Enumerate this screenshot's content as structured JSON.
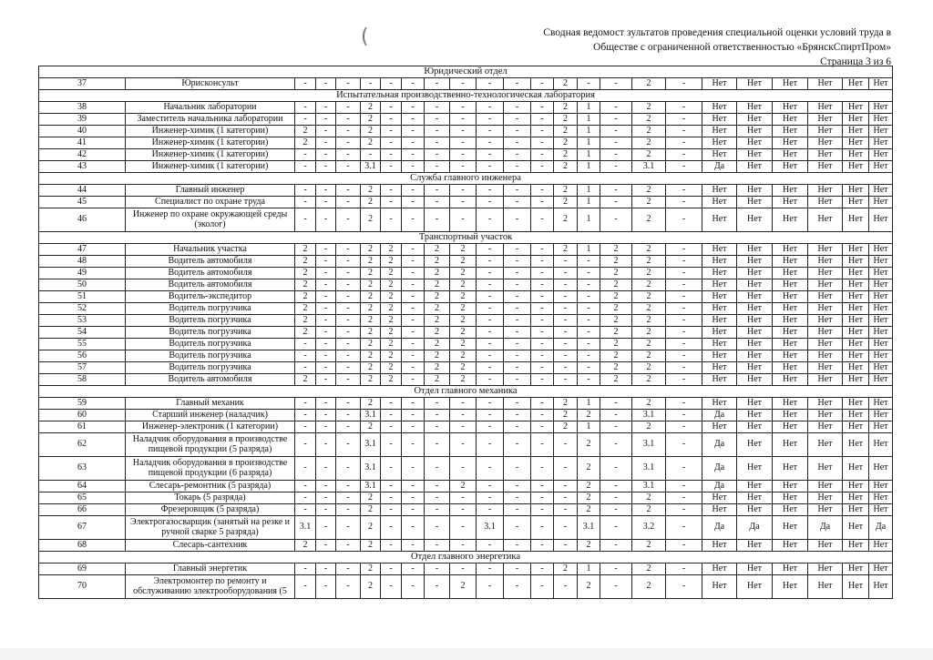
{
  "header": {
    "line1": "Сводная ведомост  зультатов проведения специальной оценки условий труда в",
    "line2": "Обществе с ограниченной ответственностью «БрянскСпиртПром»",
    "page": "Страница 3 из 6"
  },
  "sections": [
    {
      "title": "Юридический отдел",
      "rows": [
        {
          "num": "37",
          "name": "Юрисконсульт",
          "v": [
            "-",
            "-",
            "-",
            "-",
            "-",
            "-",
            "-",
            "-",
            "-",
            "-",
            "-",
            "2",
            "-",
            "-",
            "2",
            "-"
          ],
          "f": [
            "Нет",
            "Нет",
            "Нет",
            "Нет",
            "Нет",
            "Нет"
          ]
        }
      ]
    },
    {
      "title": "Испытательная производственно-технологическая лаборатория",
      "rows": [
        {
          "num": "38",
          "name": "Начальник лаборатории",
          "v": [
            "-",
            "-",
            "-",
            "2",
            "-",
            "-",
            "-",
            "-",
            "-",
            "-",
            "-",
            "2",
            "1",
            "-",
            "2",
            "-"
          ],
          "f": [
            "Нет",
            "Нет",
            "Нет",
            "Нет",
            "Нет",
            "Нет"
          ]
        },
        {
          "num": "39",
          "name": "Заместитель начальника лаборатории",
          "v": [
            "-",
            "-",
            "-",
            "2",
            "-",
            "-",
            "-",
            "-",
            "-",
            "-",
            "-",
            "2",
            "1",
            "-",
            "2",
            "-"
          ],
          "f": [
            "Нет",
            "Нет",
            "Нет",
            "Нет",
            "Нет",
            "Нет"
          ]
        },
        {
          "num": "40",
          "name": "Инженер-химик (1 категории)",
          "v": [
            "2",
            "-",
            "-",
            "2",
            "-",
            "-",
            "-",
            "-",
            "-",
            "-",
            "-",
            "2",
            "1",
            "-",
            "2",
            "-"
          ],
          "f": [
            "Нет",
            "Нет",
            "Нет",
            "Нет",
            "Нет",
            "Нет"
          ]
        },
        {
          "num": "41",
          "name": "Инженер-химик (1 категории)",
          "v": [
            "2",
            "-",
            "-",
            "2",
            "-",
            "-",
            "-",
            "-",
            "-",
            "-",
            "-",
            "2",
            "1",
            "-",
            "2",
            "-"
          ],
          "f": [
            "Нет",
            "Нет",
            "Нет",
            "Нет",
            "Нет",
            "Нет"
          ]
        },
        {
          "num": "42",
          "name": "Инженер-химик (1 категории)",
          "v": [
            "-",
            "-",
            "-",
            "-",
            "-",
            "-",
            "-",
            "-",
            "-",
            "-",
            "-",
            "2",
            "1",
            "-",
            "2",
            "-"
          ],
          "f": [
            "Нет",
            "Нет",
            "Нет",
            "Нет",
            "Нет",
            "Нет"
          ]
        },
        {
          "num": "43",
          "name": "Инженер-химик (1 категории)",
          "v": [
            "-",
            "-",
            "-",
            "3.1",
            "-",
            "-",
            "-",
            "-",
            "-",
            "-",
            "-",
            "2",
            "1",
            "-",
            "3.1",
            "-"
          ],
          "f": [
            "Да",
            "Нет",
            "Нет",
            "Нет",
            "Нет",
            "Нет"
          ]
        }
      ]
    },
    {
      "title": "Служба главного инженера",
      "rows": [
        {
          "num": "44",
          "name": "Главный инженер",
          "v": [
            "-",
            "-",
            "-",
            "2",
            "-",
            "-",
            "-",
            "-",
            "-",
            "-",
            "-",
            "2",
            "1",
            "-",
            "2",
            "-"
          ],
          "f": [
            "Нет",
            "Нет",
            "Нет",
            "Нет",
            "Нет",
            "Нет"
          ]
        },
        {
          "num": "45",
          "name": "Специалист по охране труда",
          "v": [
            "-",
            "-",
            "-",
            "2",
            "-",
            "-",
            "-",
            "-",
            "-",
            "-",
            "-",
            "2",
            "1",
            "-",
            "2",
            "-"
          ],
          "f": [
            "Нет",
            "Нет",
            "Нет",
            "Нет",
            "Нет",
            "Нет"
          ]
        },
        {
          "num": "46",
          "name": "Инженер по охране окружающей среды (эколог)",
          "double": true,
          "v": [
            "-",
            "-",
            "-",
            "2",
            "-",
            "-",
            "-",
            "-",
            "-",
            "-",
            "-",
            "2",
            "1",
            "-",
            "2",
            "-"
          ],
          "f": [
            "Нет",
            "Нет",
            "Нет",
            "Нет",
            "Нет",
            "Нет"
          ]
        }
      ]
    },
    {
      "title": "Транспортный участок",
      "rows": [
        {
          "num": "47",
          "name": "Начальник участка",
          "v": [
            "2",
            "-",
            "-",
            "2",
            "2",
            "-",
            "2",
            "2",
            "-",
            "-",
            "-",
            "2",
            "1",
            "2",
            "2",
            "-"
          ],
          "f": [
            "Нет",
            "Нет",
            "Нет",
            "Нет",
            "Нет",
            "Нет"
          ]
        },
        {
          "num": "48",
          "name": "Водитель автомобиля",
          "v": [
            "2",
            "-",
            "-",
            "2",
            "2",
            "-",
            "2",
            "2",
            "-",
            "-",
            "-",
            "-",
            "-",
            "2",
            "2",
            "-"
          ],
          "f": [
            "Нет",
            "Нет",
            "Нет",
            "Нет",
            "Нет",
            "Нет"
          ]
        },
        {
          "num": "49",
          "name": "Водитель автомобиля",
          "v": [
            "2",
            "-",
            "-",
            "2",
            "2",
            "-",
            "2",
            "2",
            "-",
            "-",
            "-",
            "-",
            "-",
            "2",
            "2",
            "-"
          ],
          "f": [
            "Нет",
            "Нет",
            "Нет",
            "Нет",
            "Нет",
            "Нет"
          ]
        },
        {
          "num": "50",
          "name": "Водитель автомобиля",
          "v": [
            "2",
            "-",
            "-",
            "2",
            "2",
            "-",
            "2",
            "2",
            "-",
            "-",
            "-",
            "-",
            "-",
            "2",
            "2",
            "-"
          ],
          "f": [
            "Нет",
            "Нет",
            "Нет",
            "Нет",
            "Нет",
            "Нет"
          ]
        },
        {
          "num": "51",
          "name": "Водитель-экспедитор",
          "v": [
            "2",
            "-",
            "-",
            "2",
            "2",
            "-",
            "2",
            "2",
            "-",
            "-",
            "-",
            "-",
            "-",
            "2",
            "2",
            "-"
          ],
          "f": [
            "Нет",
            "Нет",
            "Нет",
            "Нет",
            "Нет",
            "Нет"
          ]
        },
        {
          "num": "52",
          "name": "Водитель погрузчика",
          "v": [
            "2",
            "-",
            "-",
            "2",
            "2",
            "-",
            "2",
            "2",
            "-",
            "-",
            "-",
            "-",
            "-",
            "2",
            "2",
            "-"
          ],
          "f": [
            "Нет",
            "Нет",
            "Нет",
            "Нет",
            "Нет",
            "Нет"
          ]
        },
        {
          "num": "53",
          "name": "Водитель погрузчика",
          "v": [
            "2",
            "-",
            "-",
            "2",
            "2",
            "-",
            "2",
            "2",
            "-",
            "-",
            "-",
            "-",
            "-",
            "2",
            "2",
            "-"
          ],
          "f": [
            "Нет",
            "Нет",
            "Нет",
            "Нет",
            "Нет",
            "Нет"
          ]
        },
        {
          "num": "54",
          "name": "Водитель погрузчика",
          "v": [
            "2",
            "-",
            "-",
            "2",
            "2",
            "-",
            "2",
            "2",
            "-",
            "-",
            "-",
            "-",
            "-",
            "2",
            "2",
            "-"
          ],
          "f": [
            "Нет",
            "Нет",
            "Нет",
            "Нет",
            "Нет",
            "Нет"
          ]
        },
        {
          "num": "55",
          "name": "Водитель погрузчика",
          "v": [
            "-",
            "-",
            "-",
            "2",
            "2",
            "-",
            "2",
            "2",
            "-",
            "-",
            "-",
            "-",
            "-",
            "2",
            "2",
            "-"
          ],
          "f": [
            "Нет",
            "Нет",
            "Нет",
            "Нет",
            "Нет",
            "Нет"
          ]
        },
        {
          "num": "56",
          "name": "Водитель погрузчика",
          "v": [
            "-",
            "-",
            "-",
            "2",
            "2",
            "-",
            "2",
            "2",
            "-",
            "-",
            "-",
            "-",
            "-",
            "2",
            "2",
            "-"
          ],
          "f": [
            "Нет",
            "Нет",
            "Нет",
            "Нет",
            "Нет",
            "Нет"
          ]
        },
        {
          "num": "57",
          "name": "Водитель погрузчика",
          "v": [
            "-",
            "-",
            "-",
            "2",
            "2",
            "-",
            "2",
            "2",
            "-",
            "-",
            "-",
            "-",
            "-",
            "2",
            "2",
            "-"
          ],
          "f": [
            "Нет",
            "Нет",
            "Нет",
            "Нет",
            "Нет",
            "Нет"
          ]
        },
        {
          "num": "58",
          "name": "Водитель автомобиля",
          "v": [
            "2",
            "-",
            "-",
            "2",
            "2",
            "-",
            "2",
            "2",
            "-",
            "-",
            "-",
            "-",
            "-",
            "2",
            "2",
            "-"
          ],
          "f": [
            "Нет",
            "Нет",
            "Нет",
            "Нет",
            "Нет",
            "Нет"
          ]
        }
      ]
    },
    {
      "title": "Отдел главного механика",
      "rows": [
        {
          "num": "59",
          "name": "Главный механик",
          "v": [
            "-",
            "-",
            "-",
            "2",
            "-",
            "-",
            "-",
            "-",
            "-",
            "-",
            "-",
            "2",
            "1",
            "-",
            "2",
            "-"
          ],
          "f": [
            "Нет",
            "Нет",
            "Нет",
            "Нет",
            "Нет",
            "Нет"
          ]
        },
        {
          "num": "60",
          "name": "Старший инженер (наладчик)",
          "v": [
            "-",
            "-",
            "-",
            "3.1",
            "-",
            "-",
            "-",
            "-",
            "-",
            "-",
            "-",
            "2",
            "2",
            "-",
            "3.1",
            "-"
          ],
          "f": [
            "Да",
            "Нет",
            "Нет",
            "Нет",
            "Нет",
            "Нет"
          ]
        },
        {
          "num": "61",
          "name": "Инженер-электроник (1 категории)",
          "v": [
            "-",
            "-",
            "-",
            "2",
            "-",
            "-",
            "-",
            "-",
            "-",
            "-",
            "-",
            "2",
            "1",
            "-",
            "2",
            "-"
          ],
          "f": [
            "Нет",
            "Нет",
            "Нет",
            "Нет",
            "Нет",
            "Нет"
          ]
        },
        {
          "num": "62",
          "name": "Наладчик оборудования в производстве пищевой продукции (5 разряда)",
          "double": true,
          "v": [
            "-",
            "-",
            "-",
            "3.1",
            "-",
            "-",
            "-",
            "-",
            "-",
            "-",
            "-",
            "-",
            "2",
            "-",
            "3.1",
            "-"
          ],
          "f": [
            "Да",
            "Нет",
            "Нет",
            "Нет",
            "Нет",
            "Нет"
          ]
        },
        {
          "num": "63",
          "name": "Наладчик оборудования в производстве пищевой продукции (6 разряда)",
          "double": true,
          "v": [
            "-",
            "-",
            "-",
            "3.1",
            "-",
            "-",
            "-",
            "-",
            "-",
            "-",
            "-",
            "-",
            "2",
            "-",
            "3.1",
            "-"
          ],
          "f": [
            "Да",
            "Нет",
            "Нет",
            "Нет",
            "Нет",
            "Нет"
          ]
        },
        {
          "num": "64",
          "name": "Слесарь-ремонтник (5 разряда)",
          "v": [
            "-",
            "-",
            "-",
            "3.1",
            "-",
            "-",
            "-",
            "2",
            "-",
            "-",
            "-",
            "-",
            "2",
            "-",
            "3.1",
            "-"
          ],
          "f": [
            "Да",
            "Нет",
            "Нет",
            "Нет",
            "Нет",
            "Нет"
          ]
        },
        {
          "num": "65",
          "name": "Токарь (5 разряда)",
          "v": [
            "-",
            "-",
            "-",
            "2",
            "-",
            "-",
            "-",
            "-",
            "-",
            "-",
            "-",
            "-",
            "2",
            "-",
            "2",
            "-"
          ],
          "f": [
            "Нет",
            "Нет",
            "Нет",
            "Нет",
            "Нет",
            "Нет"
          ]
        },
        {
          "num": "66",
          "name": "Фрезеровщик (5 разряда)",
          "v": [
            "-",
            "-",
            "-",
            "2",
            "-",
            "-",
            "-",
            "-",
            "-",
            "-",
            "-",
            "-",
            "2",
            "-",
            "2",
            "-"
          ],
          "f": [
            "Нет",
            "Нет",
            "Нет",
            "Нет",
            "Нет",
            "Нет"
          ]
        },
        {
          "num": "67",
          "name": "Электрогазосварщик (занятый на резке и ручной сварке 5 разряда)",
          "double": true,
          "v": [
            "3.1",
            "-",
            "-",
            "2",
            "-",
            "-",
            "-",
            "-",
            "3.1",
            "-",
            "-",
            "-",
            "3.1",
            "-",
            "3.2",
            "-"
          ],
          "f": [
            "Да",
            "Да",
            "Нет",
            "Да",
            "Нет",
            "Да"
          ]
        },
        {
          "num": "68",
          "name": "Слесарь-сантехник",
          "v": [
            "2",
            "-",
            "-",
            "2",
            "-",
            "-",
            "-",
            "-",
            "-",
            "-",
            "-",
            "-",
            "2",
            "-",
            "2",
            "-"
          ],
          "f": [
            "Нет",
            "Нет",
            "Нет",
            "Нет",
            "Нет",
            "Нет"
          ]
        }
      ]
    },
    {
      "title": "Отдел главного энергетика",
      "rows": [
        {
          "num": "69",
          "name": "Главный энергетик",
          "v": [
            "-",
            "-",
            "-",
            "2",
            "-",
            "-",
            "-",
            "-",
            "-",
            "-",
            "-",
            "2",
            "1",
            "-",
            "2",
            "-"
          ],
          "f": [
            "Нет",
            "Нет",
            "Нет",
            "Нет",
            "Нет",
            "Нет"
          ]
        },
        {
          "num": "70",
          "name": "Электромонтер по ремонту и обслуживанию электрооборудования (5",
          "double": true,
          "v": [
            "-",
            "-",
            "-",
            "2",
            "-",
            "-",
            "-",
            "2",
            "-",
            "-",
            "-",
            "-",
            "2",
            "-",
            "2",
            "-"
          ],
          "f": [
            "Нет",
            "Нет",
            "Нет",
            "Нет",
            "Нет",
            "Нет"
          ]
        }
      ]
    }
  ]
}
